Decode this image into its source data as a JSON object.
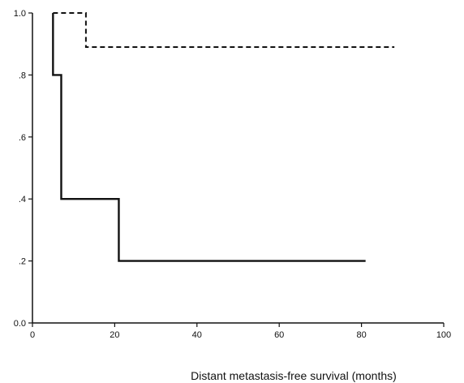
{
  "chart_data": {
    "type": "line",
    "title": "",
    "xlabel": "Distant metastasis-free  survival  (months)",
    "ylabel": "",
    "xlim": [
      0,
      100
    ],
    "ylim": [
      0,
      1
    ],
    "grid": false,
    "x_ticks": [
      0,
      20,
      40,
      60,
      80,
      100
    ],
    "x_tick_labels": [
      "0",
      "20",
      "40",
      "60",
      "80",
      "100"
    ],
    "y_ticks": [
      0,
      0.2,
      0.4,
      0.6,
      0.8,
      1.0
    ],
    "y_tick_labels": [
      "0.0",
      ".2",
      ".4",
      ".6",
      ".8",
      "1.0"
    ],
    "series": [
      {
        "style": "dashed",
        "color": "#111111",
        "x": [
          5,
          13,
          13,
          88
        ],
        "y": [
          1.0,
          1.0,
          0.89,
          0.89
        ]
      },
      {
        "style": "solid",
        "color": "#111111",
        "x": [
          5,
          5,
          7,
          7,
          21,
          21,
          81
        ],
        "y": [
          1.0,
          0.8,
          0.8,
          0.4,
          0.4,
          0.2,
          0.2
        ]
      }
    ]
  }
}
